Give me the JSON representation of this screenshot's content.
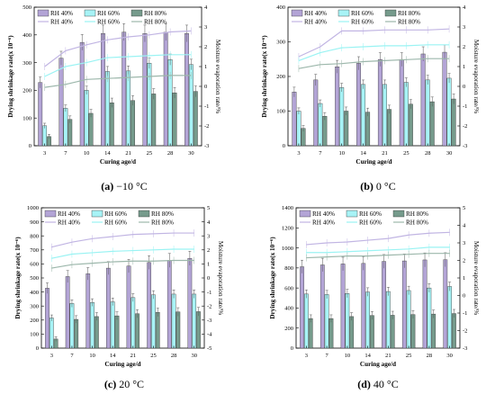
{
  "chart_data": [
    {
      "type": "bar",
      "categories": [
        "3",
        "7",
        "10",
        "14",
        "21",
        "25",
        "28",
        "30"
      ],
      "xlabel": "Curing age/d",
      "ylabel": "Drying shrinkage rate(x 10⁻⁶)",
      "ylabel_right": "Moisture evaporation rate/%",
      "caption_prefix": "(a)",
      "caption_text": " −10 °C",
      "ylim": [
        0,
        500
      ],
      "y_ticks": [
        "0",
        "100",
        "200",
        "300",
        "400",
        "500"
      ],
      "ylim_right": [
        -3,
        4
      ],
      "y_ticks_right": [
        "-3",
        "-2",
        "-1",
        "0",
        "1",
        "2",
        "3",
        "4"
      ],
      "series": [
        {
          "name": "RH 40%",
          "color": "#b3a4d6",
          "values": [
            228,
            316,
            373,
            405,
            410,
            405,
            410,
            405
          ]
        },
        {
          "name": "RH 60%",
          "color": "#a7f3f6",
          "values": [
            72,
            135,
            200,
            268,
            270,
            298,
            311,
            293
          ]
        },
        {
          "name": "RH 80%",
          "color": "#769b8c",
          "values": [
            33,
            95,
            117,
            155,
            163,
            187,
            191,
            196
          ]
        }
      ],
      "lines": [
        {
          "name": "RH 40%",
          "color": "#c1b5e3",
          "values": [
            1.0,
            1.8,
            2.1,
            2.35,
            2.5,
            2.6,
            2.75,
            2.8
          ]
        },
        {
          "name": "RH 60%",
          "color": "#9af3f3",
          "values": [
            0.5,
            1.0,
            1.2,
            1.45,
            1.5,
            1.55,
            1.6,
            1.6
          ]
        },
        {
          "name": "RH 80%",
          "color": "#9cb7ab",
          "values": [
            -0.05,
            0.1,
            0.35,
            0.4,
            0.45,
            0.5,
            0.55,
            0.55
          ]
        }
      ]
    },
    {
      "type": "bar",
      "categories": [
        "3",
        "7",
        "10",
        "14",
        "21",
        "25",
        "28",
        "30"
      ],
      "xlabel": "Curing age/d",
      "ylabel": "Drying shrinkage rate(x 10⁻⁶)",
      "ylabel_right": "Moisture evaporation rate/%",
      "caption_prefix": "(b)",
      "caption_text": " 0 °C",
      "ylim": [
        0,
        400
      ],
      "y_ticks": [
        "0",
        "100",
        "200",
        "300",
        "400"
      ],
      "ylim_right": [
        -3,
        4
      ],
      "y_ticks_right": [
        "-3",
        "-2",
        "-1",
        "0",
        "1",
        "2",
        "3",
        "4"
      ],
      "series": [
        {
          "name": "RH 40%",
          "color": "#b3a4d6",
          "values": [
            155,
            190,
            228,
            238,
            249,
            249,
            265,
            270
          ]
        },
        {
          "name": "RH 60%",
          "color": "#a7f3f6",
          "values": [
            100,
            122,
            168,
            177,
            177,
            183,
            190,
            195
          ]
        },
        {
          "name": "RH 80%",
          "color": "#769b8c",
          "values": [
            50,
            85,
            100,
            97,
            105,
            120,
            127,
            135
          ]
        }
      ],
      "lines": [
        {
          "name": "RH 40%",
          "color": "#c1b5e3",
          "values": [
            1.5,
            2.0,
            2.8,
            2.8,
            2.85,
            2.85,
            2.85,
            2.9
          ]
        },
        {
          "name": "RH 60%",
          "color": "#9af3f3",
          "values": [
            1.3,
            1.7,
            1.95,
            2.0,
            2.05,
            2.05,
            2.1,
            2.1
          ]
        },
        {
          "name": "RH 80%",
          "color": "#9cb7ab",
          "values": [
            0.9,
            1.1,
            1.15,
            1.25,
            1.3,
            1.35,
            1.4,
            1.4
          ]
        }
      ]
    },
    {
      "type": "bar",
      "categories": [
        "3",
        "7",
        "10",
        "14",
        "21",
        "25",
        "28",
        "30"
      ],
      "xlabel": "Curing age/d",
      "ylabel": "Drying shrinkage rate(x 10⁻⁶)",
      "ylabel_right": "Moisture evaporation rate/%",
      "caption_prefix": "(c)",
      "caption_text": " 20 °C",
      "ylim": [
        0,
        1000
      ],
      "y_ticks": [
        "0",
        "100",
        "200",
        "300",
        "400",
        "500",
        "600",
        "700",
        "800",
        "900",
        "1000"
      ],
      "ylim_right": [
        -5,
        5
      ],
      "y_ticks_right": [
        "-5",
        "-4",
        "-3",
        "-2",
        "-1",
        "0",
        "1",
        "2",
        "3",
        "4",
        "5"
      ],
      "series": [
        {
          "name": "RH 40%",
          "color": "#b3a4d6",
          "values": [
            427,
            510,
            530,
            570,
            585,
            610,
            625,
            640
          ]
        },
        {
          "name": "RH 60%",
          "color": "#a7f3f6",
          "values": [
            215,
            318,
            325,
            330,
            360,
            380,
            385,
            385
          ]
        },
        {
          "name": "RH 80%",
          "color": "#769b8c",
          "values": [
            65,
            205,
            225,
            230,
            245,
            255,
            258,
            260
          ]
        }
      ],
      "lines": [
        {
          "name": "RH 40%",
          "color": "#c1b5e3",
          "values": [
            2.2,
            2.55,
            2.8,
            2.95,
            3.1,
            3.15,
            3.2,
            3.2
          ]
        },
        {
          "name": "RH 60%",
          "color": "#9af3f3",
          "values": [
            1.4,
            1.7,
            1.8,
            1.9,
            1.95,
            2.0,
            2.05,
            2.05
          ]
        },
        {
          "name": "RH 80%",
          "color": "#9cb7ab",
          "values": [
            0.7,
            0.95,
            1.05,
            1.15,
            1.2,
            1.2,
            1.25,
            1.25
          ]
        }
      ]
    },
    {
      "type": "bar",
      "categories": [
        "3",
        "7",
        "10",
        "14",
        "21",
        "25",
        "28",
        "30"
      ],
      "xlabel": "Curing age/d",
      "ylabel": "Drying shrinkage rate(x 10⁻⁶)",
      "ylabel_right": "Moisture evaporation rate/%",
      "caption_prefix": "(d)",
      "caption_text": " 40 °C",
      "ylim": [
        0,
        1400
      ],
      "y_ticks": [
        "0",
        "200",
        "400",
        "600",
        "800",
        "1000",
        "1200",
        "1400"
      ],
      "ylim_right": [
        -3,
        5
      ],
      "y_ticks_right": [
        "-3",
        "-2",
        "-1",
        "0",
        "1",
        "2",
        "3",
        "4",
        "5"
      ],
      "series": [
        {
          "name": "RH 40%",
          "color": "#b3a4d6",
          "values": [
            812,
            830,
            840,
            845,
            865,
            870,
            880,
            882
          ]
        },
        {
          "name": "RH 60%",
          "color": "#a7f3f6",
          "values": [
            540,
            535,
            545,
            560,
            565,
            575,
            600,
            615
          ]
        },
        {
          "name": "RH 80%",
          "color": "#769b8c",
          "values": [
            295,
            295,
            315,
            325,
            328,
            335,
            340,
            345
          ]
        }
      ],
      "lines": [
        {
          "name": "RH 40%",
          "color": "#c1b5e3",
          "values": [
            2.9,
            3.0,
            3.05,
            3.15,
            3.25,
            3.45,
            3.55,
            3.6
          ]
        },
        {
          "name": "RH 60%",
          "color": "#9af3f3",
          "values": [
            2.45,
            2.45,
            2.5,
            2.55,
            2.6,
            2.65,
            2.75,
            2.75
          ]
        },
        {
          "name": "RH 80%",
          "color": "#9cb7ab",
          "values": [
            2.15,
            2.2,
            2.25,
            2.25,
            2.3,
            2.35,
            2.4,
            2.4
          ]
        }
      ]
    }
  ]
}
